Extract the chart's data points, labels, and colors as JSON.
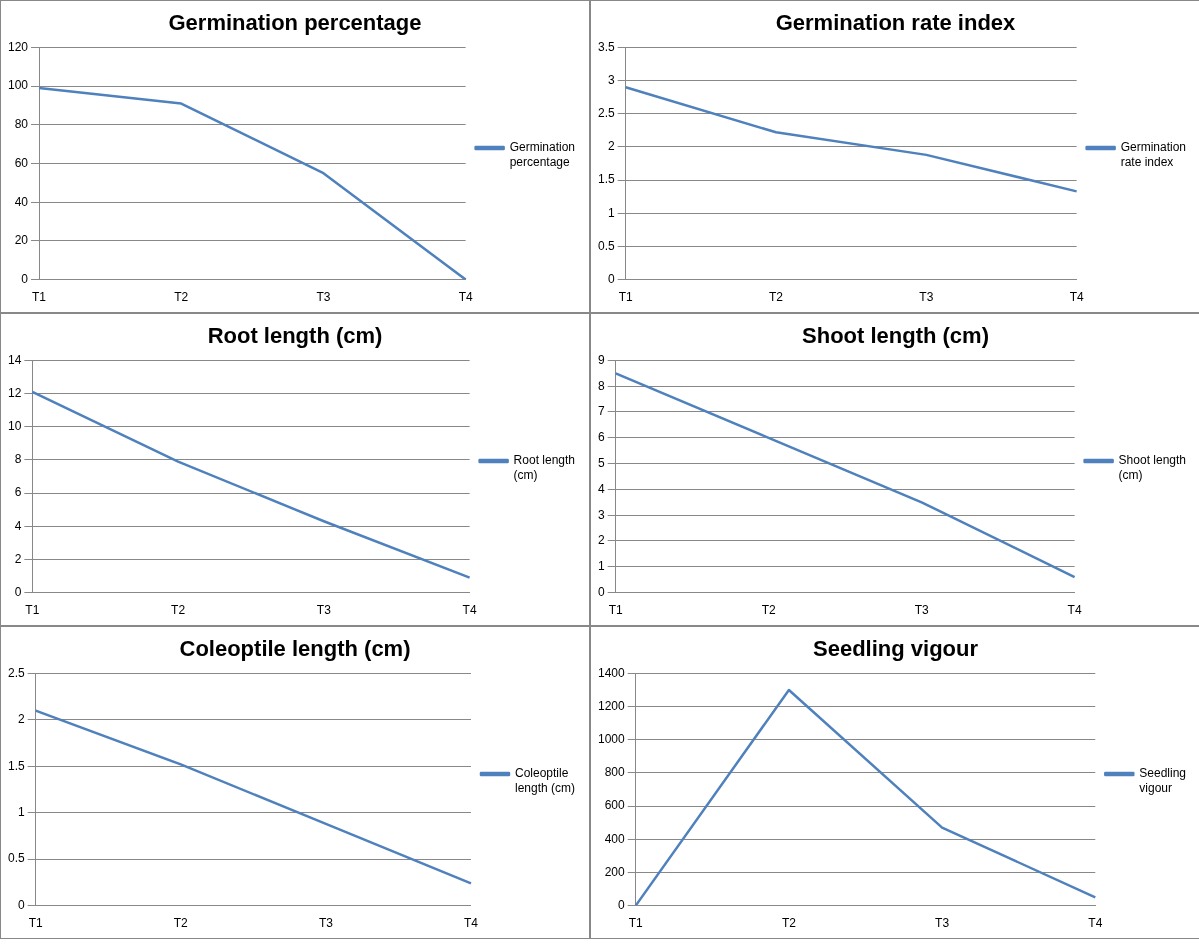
{
  "chart_data": [
    {
      "type": "line",
      "title": "Germination percentage",
      "categories": [
        "T1",
        "T2",
        "T3",
        "T4"
      ],
      "series": [
        {
          "name": "Germination percentage",
          "color": "#4f81bd",
          "values": [
            99,
            91,
            55,
            0
          ]
        }
      ],
      "ylim": [
        0,
        120
      ],
      "yticks": [
        0,
        20,
        40,
        60,
        80,
        100,
        120
      ],
      "grid": "y",
      "legend": "right",
      "marker": "none"
    },
    {
      "type": "line",
      "title": "Germination rate index",
      "categories": [
        "T1",
        "T2",
        "T3",
        "T4"
      ],
      "series": [
        {
          "name": "Germination rate index",
          "color": "#4f81bd",
          "values": [
            2.9,
            2.22,
            1.88,
            1.33
          ]
        }
      ],
      "ylim": [
        0,
        3.5
      ],
      "yticks": [
        0,
        0.5,
        1,
        1.5,
        2,
        2.5,
        3,
        3.5
      ],
      "grid": "y",
      "legend": "right",
      "marker": "none"
    },
    {
      "type": "line",
      "title": "Root length (cm)",
      "categories": [
        "T1",
        "T2",
        "T3",
        "T4"
      ],
      "series": [
        {
          "name": "Root length (cm)",
          "color": "#4f81bd",
          "values": [
            12.1,
            7.9,
            4.3,
            0.9
          ]
        }
      ],
      "ylim": [
        0,
        14
      ],
      "yticks": [
        0,
        2,
        4,
        6,
        8,
        10,
        12,
        14
      ],
      "grid": "y",
      "legend": "right",
      "marker": "none"
    },
    {
      "type": "line",
      "title": "Shoot length (cm)",
      "categories": [
        "T1",
        "T2",
        "T3",
        "T4"
      ],
      "series": [
        {
          "name": "Shoot length (cm)",
          "color": "#4f81bd",
          "values": [
            8.5,
            6.0,
            3.5,
            0.6
          ]
        }
      ],
      "ylim": [
        0,
        9
      ],
      "yticks": [
        0,
        1,
        2,
        3,
        4,
        5,
        6,
        7,
        8,
        9
      ],
      "grid": "y",
      "legend": "right",
      "marker": "none"
    },
    {
      "type": "line",
      "title": "Coleoptile length (cm)",
      "categories": [
        "T1",
        "T2",
        "T3",
        "T4"
      ],
      "series": [
        {
          "name": "Coleoptile length (cm)",
          "color": "#4f81bd",
          "values": [
            2.1,
            1.52,
            0.88,
            0.24
          ]
        }
      ],
      "ylim": [
        0,
        2.5
      ],
      "yticks": [
        0,
        0.5,
        1,
        1.5,
        2,
        2.5
      ],
      "grid": "y",
      "legend": "right",
      "marker": "none"
    },
    {
      "type": "line",
      "title": "Seedling vigour",
      "categories": [
        "T1",
        "T2",
        "T3",
        "T4"
      ],
      "series": [
        {
          "name": "Seedling vigour",
          "color": "#4f81bd",
          "values": [
            0,
            1300,
            470,
            50
          ]
        }
      ],
      "ylim": [
        0,
        1400
      ],
      "yticks": [
        0,
        200,
        400,
        600,
        800,
        1000,
        1200,
        1400
      ],
      "grid": "y",
      "legend": "right",
      "marker": "none"
    }
  ]
}
